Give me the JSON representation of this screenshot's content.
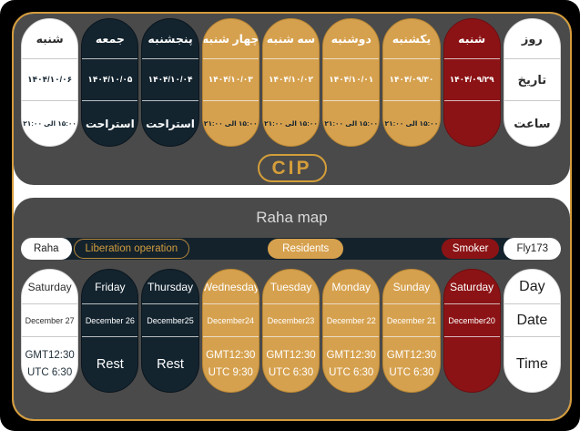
{
  "colors": {
    "background": "#000000",
    "panel": "#4a4a4a",
    "frame_border": "#d69c3b",
    "gold": "#d6a14e",
    "navy": "#13242f",
    "red": "#8c1315",
    "white": "#ffffff",
    "legend_bar": "#14222c",
    "cip_gold": "#d49e3a",
    "title_text": "#d9d9d9"
  },
  "top_panel": {
    "badge": "CIP",
    "labels_column": {
      "day": "روز",
      "date": "تاریخ",
      "time": "ساعت"
    },
    "columns": [
      {
        "day": "شنبه",
        "date": "۱۴۰۴/۱۰/۰۶",
        "time": "۱۵:۰۰ الی ۲۱:۰۰",
        "variant": "white"
      },
      {
        "day": "جمعه",
        "date": "۱۴۰۴/۱۰/۰۵",
        "time": "استراحت",
        "variant": "navy"
      },
      {
        "day": "پنجشنبه",
        "date": "۱۴۰۴/۱۰/۰۴",
        "time": "استراحت",
        "variant": "navy"
      },
      {
        "day": "چهار شنبه",
        "date": "۱۴۰۴/۱۰/۰۳",
        "time": "۱۵:۰۰ الی ۲۱:۰۰",
        "variant": "gold"
      },
      {
        "day": "سه شنبه",
        "date": "۱۴۰۴/۱۰/۰۲",
        "time": "۱۵:۰۰ الی ۲۱:۰۰",
        "variant": "gold"
      },
      {
        "day": "دوشنبه",
        "date": "۱۴۰۴/۱۰/۰۱",
        "time": "۱۵:۰۰ الی ۲۱:۰۰",
        "variant": "gold"
      },
      {
        "day": "یکشنبه",
        "date": "۱۴۰۴/۰۹/۳۰",
        "time": "۱۵:۰۰ الی ۲۱:۰۰",
        "variant": "gold"
      },
      {
        "day": "شنبه",
        "date": "۱۴۰۴/۰۹/۲۹",
        "time": "",
        "variant": "red"
      }
    ]
  },
  "bottom_panel": {
    "title": "Raha map",
    "legend": [
      {
        "label": "Raha",
        "variant": "white"
      },
      {
        "label": "Liberation operation",
        "variant": "outline"
      },
      {
        "label": "Residents",
        "variant": "gold"
      },
      {
        "label": "Smoker",
        "variant": "red"
      },
      {
        "label": "Fly173",
        "variant": "white"
      }
    ],
    "labels_column": {
      "day": "Day",
      "date": "Date",
      "time": "Time"
    },
    "columns": [
      {
        "day": "Saturday",
        "date": "December 27",
        "time1": "GMT12:30",
        "time2": "UTC 6:30",
        "variant": "white"
      },
      {
        "day": "Friday",
        "date": "December 26",
        "time1": "Rest",
        "time2": "",
        "variant": "navy"
      },
      {
        "day": "Thursday",
        "date": "December25",
        "time1": "Rest",
        "time2": "",
        "variant": "navy"
      },
      {
        "day": "Wednesday",
        "date": "December24",
        "time1": "GMT12:30",
        "time2": "UTC 9:30",
        "variant": "gold"
      },
      {
        "day": "Tuesday",
        "date": "December23",
        "time1": "GMT12:30",
        "time2": "UTC 6:30",
        "variant": "gold"
      },
      {
        "day": "Monday",
        "date": "December 22",
        "time1": "GMT12:30",
        "time2": "UTC 6:30",
        "variant": "gold"
      },
      {
        "day": "Sunday",
        "date": "December 21",
        "time1": "GMT12:30",
        "time2": "UTC 6:30",
        "variant": "gold"
      },
      {
        "day": "Saturday",
        "date": "December20",
        "time1": "",
        "time2": "",
        "variant": "red"
      }
    ]
  }
}
